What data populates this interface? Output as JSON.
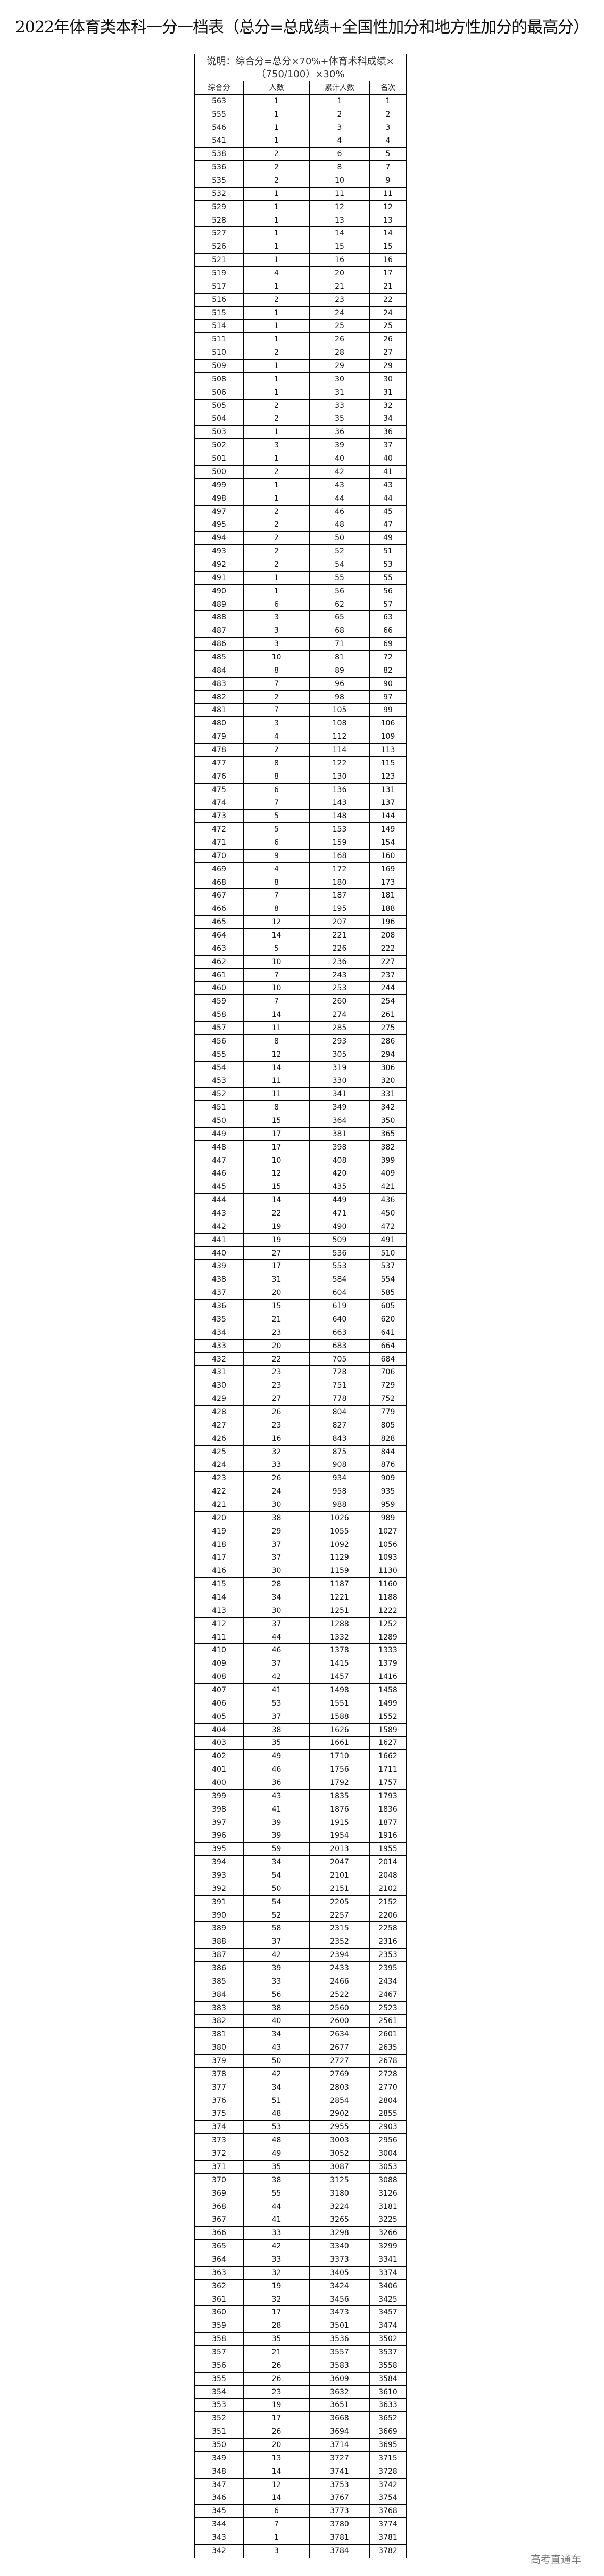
{
  "title": "2022年体育类本科一分一档表（总分=总成绩+全国性加分和地方性加分的最高分）",
  "table": {
    "note": "说明：综合分=总分×70%+体育术科成绩×（750/100）×30%",
    "headers": [
      "综合分",
      "人数",
      "累计人数",
      "名次"
    ],
    "rows": [
      [
        563,
        1,
        1,
        1
      ],
      [
        555,
        1,
        2,
        2
      ],
      [
        546,
        1,
        3,
        3
      ],
      [
        541,
        1,
        4,
        4
      ],
      [
        538,
        2,
        6,
        5
      ],
      [
        536,
        2,
        8,
        7
      ],
      [
        535,
        2,
        10,
        9
      ],
      [
        532,
        1,
        11,
        11
      ],
      [
        529,
        1,
        12,
        12
      ],
      [
        528,
        1,
        13,
        13
      ],
      [
        527,
        1,
        14,
        14
      ],
      [
        526,
        1,
        15,
        15
      ],
      [
        521,
        1,
        16,
        16
      ],
      [
        519,
        4,
        20,
        17
      ],
      [
        517,
        1,
        21,
        21
      ],
      [
        516,
        2,
        23,
        22
      ],
      [
        515,
        1,
        24,
        24
      ],
      [
        514,
        1,
        25,
        25
      ],
      [
        511,
        1,
        26,
        26
      ],
      [
        510,
        2,
        28,
        27
      ],
      [
        509,
        1,
        29,
        29
      ],
      [
        508,
        1,
        30,
        30
      ],
      [
        506,
        1,
        31,
        31
      ],
      [
        505,
        2,
        33,
        32
      ],
      [
        504,
        2,
        35,
        34
      ],
      [
        503,
        1,
        36,
        36
      ],
      [
        502,
        3,
        39,
        37
      ],
      [
        501,
        1,
        40,
        40
      ],
      [
        500,
        2,
        42,
        41
      ],
      [
        499,
        1,
        43,
        43
      ],
      [
        498,
        1,
        44,
        44
      ],
      [
        497,
        2,
        46,
        45
      ],
      [
        495,
        2,
        48,
        47
      ],
      [
        494,
        2,
        50,
        49
      ],
      [
        493,
        2,
        52,
        51
      ],
      [
        492,
        2,
        54,
        53
      ],
      [
        491,
        1,
        55,
        55
      ],
      [
        490,
        1,
        56,
        56
      ],
      [
        489,
        6,
        62,
        57
      ],
      [
        488,
        3,
        65,
        63
      ],
      [
        487,
        3,
        68,
        66
      ],
      [
        486,
        3,
        71,
        69
      ],
      [
        485,
        10,
        81,
        72
      ],
      [
        484,
        8,
        89,
        82
      ],
      [
        483,
        7,
        96,
        90
      ],
      [
        482,
        2,
        98,
        97
      ],
      [
        481,
        7,
        105,
        99
      ],
      [
        480,
        3,
        108,
        106
      ],
      [
        479,
        4,
        112,
        109
      ],
      [
        478,
        2,
        114,
        113
      ],
      [
        477,
        8,
        122,
        115
      ],
      [
        476,
        8,
        130,
        123
      ],
      [
        475,
        6,
        136,
        131
      ],
      [
        474,
        7,
        143,
        137
      ],
      [
        473,
        5,
        148,
        144
      ],
      [
        472,
        5,
        153,
        149
      ],
      [
        471,
        6,
        159,
        154
      ],
      [
        470,
        9,
        168,
        160
      ],
      [
        469,
        4,
        172,
        169
      ],
      [
        468,
        8,
        180,
        173
      ],
      [
        467,
        7,
        187,
        181
      ],
      [
        466,
        8,
        195,
        188
      ],
      [
        465,
        12,
        207,
        196
      ],
      [
        464,
        14,
        221,
        208
      ],
      [
        463,
        5,
        226,
        222
      ],
      [
        462,
        10,
        236,
        227
      ],
      [
        461,
        7,
        243,
        237
      ],
      [
        460,
        10,
        253,
        244
      ],
      [
        459,
        7,
        260,
        254
      ],
      [
        458,
        14,
        274,
        261
      ],
      [
        457,
        11,
        285,
        275
      ],
      [
        456,
        8,
        293,
        286
      ],
      [
        455,
        12,
        305,
        294
      ],
      [
        454,
        14,
        319,
        306
      ],
      [
        453,
        11,
        330,
        320
      ],
      [
        452,
        11,
        341,
        331
      ],
      [
        451,
        8,
        349,
        342
      ],
      [
        450,
        15,
        364,
        350
      ],
      [
        449,
        17,
        381,
        365
      ],
      [
        448,
        17,
        398,
        382
      ],
      [
        447,
        10,
        408,
        399
      ],
      [
        446,
        12,
        420,
        409
      ],
      [
        445,
        15,
        435,
        421
      ],
      [
        444,
        14,
        449,
        436
      ],
      [
        443,
        22,
        471,
        450
      ],
      [
        442,
        19,
        490,
        472
      ],
      [
        441,
        19,
        509,
        491
      ],
      [
        440,
        27,
        536,
        510
      ],
      [
        439,
        17,
        553,
        537
      ],
      [
        438,
        31,
        584,
        554
      ],
      [
        437,
        20,
        604,
        585
      ],
      [
        436,
        15,
        619,
        605
      ],
      [
        435,
        21,
        640,
        620
      ],
      [
        434,
        23,
        663,
        641
      ],
      [
        433,
        20,
        683,
        664
      ],
      [
        432,
        22,
        705,
        684
      ],
      [
        431,
        23,
        728,
        706
      ],
      [
        430,
        23,
        751,
        729
      ],
      [
        429,
        27,
        778,
        752
      ],
      [
        428,
        26,
        804,
        779
      ],
      [
        427,
        23,
        827,
        805
      ],
      [
        426,
        16,
        843,
        828
      ],
      [
        425,
        32,
        875,
        844
      ],
      [
        424,
        33,
        908,
        876
      ],
      [
        423,
        26,
        934,
        909
      ],
      [
        422,
        24,
        958,
        935
      ],
      [
        421,
        30,
        988,
        959
      ],
      [
        420,
        38,
        1026,
        989
      ],
      [
        419,
        29,
        1055,
        1027
      ],
      [
        418,
        37,
        1092,
        1056
      ],
      [
        417,
        37,
        1129,
        1093
      ],
      [
        416,
        30,
        1159,
        1130
      ],
      [
        415,
        28,
        1187,
        1160
      ],
      [
        414,
        34,
        1221,
        1188
      ],
      [
        413,
        30,
        1251,
        1222
      ],
      [
        412,
        37,
        1288,
        1252
      ],
      [
        411,
        44,
        1332,
        1289
      ],
      [
        410,
        46,
        1378,
        1333
      ],
      [
        409,
        37,
        1415,
        1379
      ],
      [
        408,
        42,
        1457,
        1416
      ],
      [
        407,
        41,
        1498,
        1458
      ],
      [
        406,
        53,
        1551,
        1499
      ],
      [
        405,
        37,
        1588,
        1552
      ],
      [
        404,
        38,
        1626,
        1589
      ],
      [
        403,
        35,
        1661,
        1627
      ],
      [
        402,
        49,
        1710,
        1662
      ],
      [
        401,
        46,
        1756,
        1711
      ],
      [
        400,
        36,
        1792,
        1757
      ],
      [
        399,
        43,
        1835,
        1793
      ],
      [
        398,
        41,
        1876,
        1836
      ],
      [
        397,
        39,
        1915,
        1877
      ],
      [
        396,
        39,
        1954,
        1916
      ],
      [
        395,
        59,
        2013,
        1955
      ],
      [
        394,
        34,
        2047,
        2014
      ],
      [
        393,
        54,
        2101,
        2048
      ],
      [
        392,
        50,
        2151,
        2102
      ],
      [
        391,
        54,
        2205,
        2152
      ],
      [
        390,
        52,
        2257,
        2206
      ],
      [
        389,
        58,
        2315,
        2258
      ],
      [
        388,
        37,
        2352,
        2316
      ],
      [
        387,
        42,
        2394,
        2353
      ],
      [
        386,
        39,
        2433,
        2395
      ],
      [
        385,
        33,
        2466,
        2434
      ],
      [
        384,
        56,
        2522,
        2467
      ],
      [
        383,
        38,
        2560,
        2523
      ],
      [
        382,
        40,
        2600,
        2561
      ],
      [
        381,
        34,
        2634,
        2601
      ],
      [
        380,
        43,
        2677,
        2635
      ],
      [
        379,
        50,
        2727,
        2678
      ],
      [
        378,
        42,
        2769,
        2728
      ],
      [
        377,
        34,
        2803,
        2770
      ],
      [
        376,
        51,
        2854,
        2804
      ],
      [
        375,
        48,
        2902,
        2855
      ],
      [
        374,
        53,
        2955,
        2903
      ],
      [
        373,
        48,
        3003,
        2956
      ],
      [
        372,
        49,
        3052,
        3004
      ],
      [
        371,
        35,
        3087,
        3053
      ],
      [
        370,
        38,
        3125,
        3088
      ],
      [
        369,
        55,
        3180,
        3126
      ],
      [
        368,
        44,
        3224,
        3181
      ],
      [
        367,
        41,
        3265,
        3225
      ],
      [
        366,
        33,
        3298,
        3266
      ],
      [
        365,
        42,
        3340,
        3299
      ],
      [
        364,
        33,
        3373,
        3341
      ],
      [
        363,
        32,
        3405,
        3374
      ],
      [
        362,
        19,
        3424,
        3406
      ],
      [
        361,
        32,
        3456,
        3425
      ],
      [
        360,
        17,
        3473,
        3457
      ],
      [
        359,
        28,
        3501,
        3474
      ],
      [
        358,
        35,
        3536,
        3502
      ],
      [
        357,
        21,
        3557,
        3537
      ],
      [
        356,
        26,
        3583,
        3558
      ],
      [
        355,
        26,
        3609,
        3584
      ],
      [
        354,
        23,
        3632,
        3610
      ],
      [
        353,
        19,
        3651,
        3633
      ],
      [
        352,
        17,
        3668,
        3652
      ],
      [
        351,
        26,
        3694,
        3669
      ],
      [
        350,
        20,
        3714,
        3695
      ],
      [
        349,
        13,
        3727,
        3715
      ],
      [
        348,
        14,
        3741,
        3728
      ],
      [
        347,
        12,
        3753,
        3742
      ],
      [
        346,
        14,
        3767,
        3754
      ],
      [
        345,
        6,
        3773,
        3768
      ],
      [
        344,
        7,
        3780,
        3774
      ],
      [
        343,
        1,
        3781,
        3781
      ],
      [
        342,
        3,
        3784,
        3782
      ]
    ]
  },
  "watermark": "高考直通车"
}
